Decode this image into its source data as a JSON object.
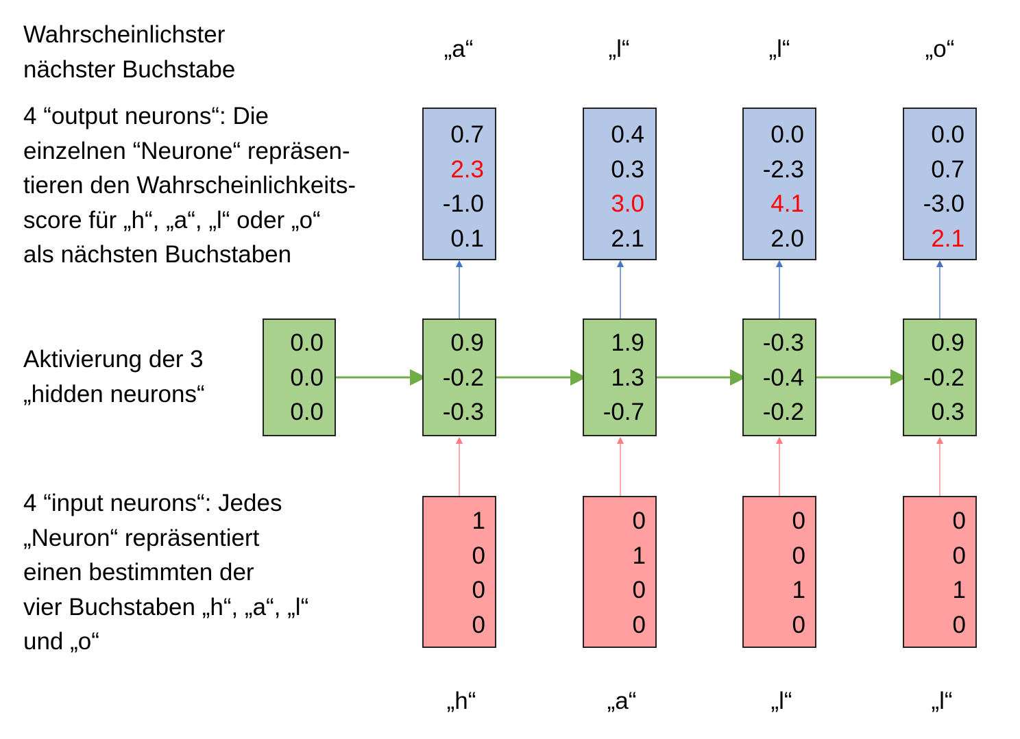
{
  "labels": {
    "next_letter": "Wahrscheinlichster\nnächster Buchstabe",
    "output_neurons": "4 “output neurons“: Die\neinzelnen “Neurone“ repräsen-\ntieren den Wahrscheinlichkeits-\nscore für „h“, „a“, „l“ oder „o“\nals nächsten Buchstaben",
    "hidden_neurons": "Aktivierung der 3\n„hidden neurons“",
    "input_neurons": "4 “input neurons“: Jedes\n„Neuron“ repräsentiert\neinen bestimmten der\nvier Buchstaben „h“, „a“, „l“\nund „o“"
  },
  "predicted_letters": [
    "„a“",
    "„l“",
    "„l“",
    "„o“"
  ],
  "input_letters": [
    "„h“",
    "„a“",
    "„l“",
    "„l“"
  ],
  "output_vectors": [
    {
      "values": [
        "0.7",
        "2.3",
        "-1.0",
        "0.1"
      ],
      "highlight_index": 1
    },
    {
      "values": [
        "0.4",
        "0.3",
        "3.0",
        "2.1"
      ],
      "highlight_index": 2
    },
    {
      "values": [
        "0.0",
        "-2.3",
        "4.1",
        "2.0"
      ],
      "highlight_index": 2
    },
    {
      "values": [
        "0.0",
        "0.7",
        "-3.0",
        "2.1"
      ],
      "highlight_index": 3
    }
  ],
  "initial_hidden": [
    "0.0",
    "0.0",
    "0.0"
  ],
  "hidden_vectors": [
    [
      "0.9",
      "-0.2",
      "-0.3"
    ],
    [
      "1.9",
      "1.3",
      "-0.7"
    ],
    [
      "-0.3",
      "-0.4",
      "-0.2"
    ],
    [
      "0.9",
      "-0.2",
      "0.3"
    ]
  ],
  "input_vectors": [
    [
      "1",
      "0",
      "0",
      "0"
    ],
    [
      "0",
      "1",
      "0",
      "0"
    ],
    [
      "0",
      "0",
      "1",
      "0"
    ],
    [
      "0",
      "0",
      "1",
      "0"
    ]
  ],
  "colors": {
    "output_fill": "#b4c7e7",
    "hidden_fill": "#a9d18e",
    "input_fill": "#ff9f9f",
    "highlight_text": "#ff0000",
    "arrow_output": "#4472c4",
    "arrow_hidden": "#70ad47",
    "arrow_input": "#ff7c80"
  }
}
